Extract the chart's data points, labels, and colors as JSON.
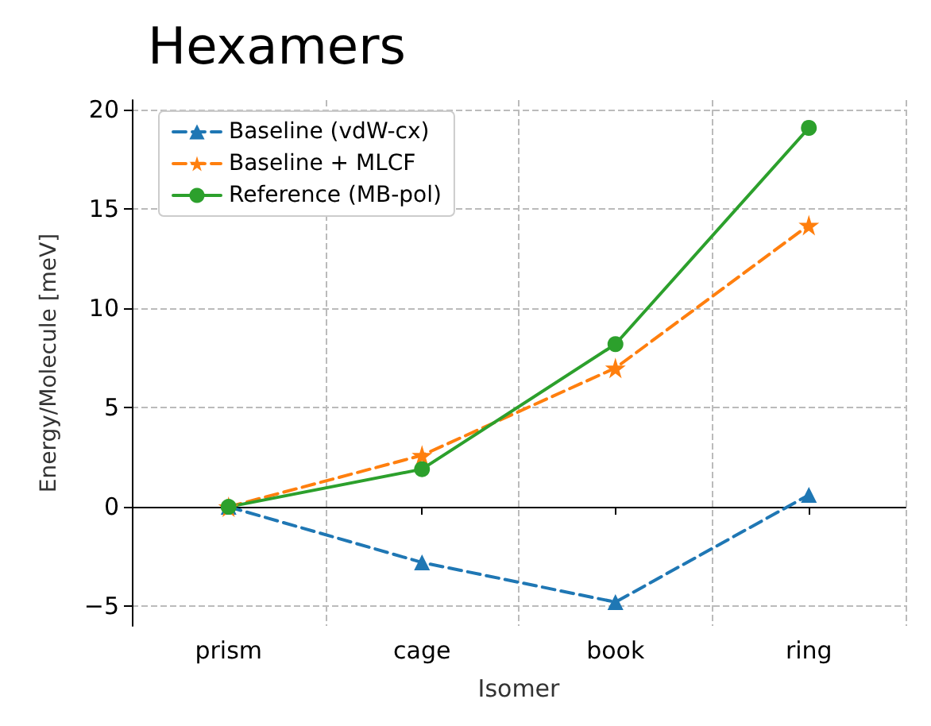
{
  "chart_data": {
    "type": "line",
    "title": "Hexamers",
    "xlabel": "Isomer",
    "ylabel": "Energy/Molecule [meV]",
    "categories": [
      "prism",
      "cage",
      "book",
      "ring"
    ],
    "series": [
      {
        "name": "Baseline (vdW-cx)",
        "color": "#1f77b4",
        "values": [
          0,
          -2.8,
          -4.8,
          0.6
        ],
        "marker": "triangle",
        "line_style": "dashed"
      },
      {
        "name": "Baseline + MLCF",
        "color": "#ff7f0e",
        "values": [
          0,
          2.6,
          7.0,
          14.2
        ],
        "marker": "star",
        "line_style": "dashed"
      },
      {
        "name": "Reference (MB-pol)",
        "color": "#2ca02c",
        "values": [
          0,
          1.9,
          8.2,
          19.1
        ],
        "marker": "circle",
        "line_style": "solid"
      }
    ],
    "ylim": [
      -6,
      20.5
    ],
    "yticks": [
      -5,
      0,
      5,
      10,
      15,
      20
    ],
    "grid": true,
    "legend": "top left"
  }
}
